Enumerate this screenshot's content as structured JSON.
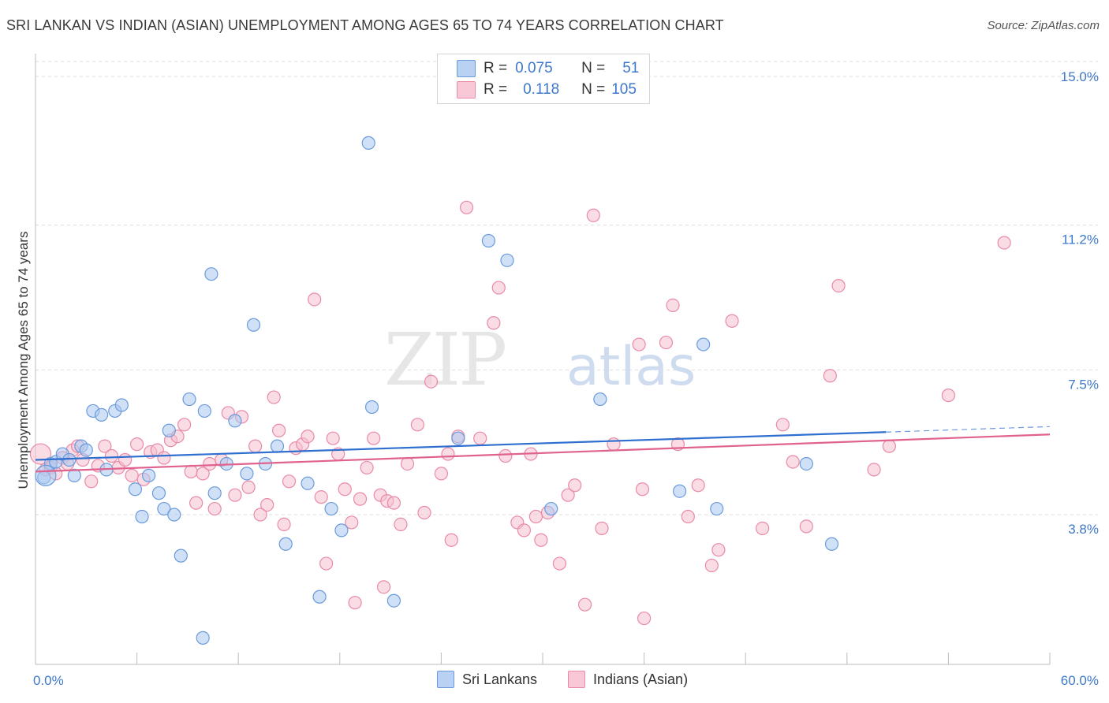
{
  "header": {
    "title": "SRI LANKAN VS INDIAN (ASIAN) UNEMPLOYMENT AMONG AGES 65 TO 74 YEARS CORRELATION CHART",
    "source": "Source: ZipAtlas.com"
  },
  "watermark": {
    "zip": "ZIP",
    "atlas": "atlas"
  },
  "legend_top": {
    "rows": [
      {
        "r_label": "R =",
        "r_value": "0.075",
        "n_label": "N =",
        "n_value": "51"
      },
      {
        "r_label": "R =",
        "r_value": "0.118",
        "n_label": "N =",
        "n_value": "105"
      }
    ]
  },
  "legend_bottom": {
    "items": [
      "Sri Lankans",
      "Indians (Asian)"
    ]
  },
  "colors": {
    "blue_fill": "#aac8f0",
    "blue_stroke": "#6a9bdc",
    "blue_line": "#2f6fd0",
    "pink_fill": "#f6bfd0",
    "pink_stroke": "#e98aa8",
    "pink_line": "#e0628e",
    "tick_label": "#3d78c9",
    "grid": "#dcdcdc"
  },
  "chart_data": {
    "type": "scatter",
    "title": "SRI LANKAN VS INDIAN (ASIAN) UNEMPLOYMENT AMONG AGES 65 TO 74 YEARS CORRELATION CHART",
    "xlabel": "",
    "ylabel": "Unemployment Among Ages 65 to 74 years",
    "xlim": [
      0,
      60
    ],
    "ylim": [
      0,
      15.5
    ],
    "x_tick_labels": [
      {
        "value": 0,
        "label": "0.0%"
      },
      {
        "value": 60,
        "label": "60.0%"
      }
    ],
    "y_ticks": [
      {
        "value": 3.8,
        "label": "3.8%"
      },
      {
        "value": 7.5,
        "label": "7.5%"
      },
      {
        "value": 11.2,
        "label": "11.2%"
      },
      {
        "value": 15.0,
        "label": "15.0%"
      }
    ],
    "grid": "horizontal dashed",
    "legend": "top-center",
    "series": [
      {
        "name": "Sri Lankans",
        "r": 0.075,
        "n": 51,
        "trend": {
          "x0": 0,
          "y0": 5.2,
          "x1": 50.3,
          "y1": 5.91,
          "dashed_to_x": 60,
          "dashed_to_y": 6.05
        },
        "points": [
          [
            0.5,
            4.75
          ],
          [
            0.9,
            5.1
          ],
          [
            1.2,
            5.15
          ],
          [
            1.6,
            5.35
          ],
          [
            2.0,
            5.2
          ],
          [
            2.3,
            4.8
          ],
          [
            2.7,
            5.55
          ],
          [
            3.0,
            5.45
          ],
          [
            3.4,
            6.45
          ],
          [
            3.9,
            6.35
          ],
          [
            4.2,
            4.95
          ],
          [
            4.7,
            6.45
          ],
          [
            5.1,
            6.6
          ],
          [
            5.9,
            4.45
          ],
          [
            6.3,
            3.75
          ],
          [
            6.7,
            4.8
          ],
          [
            7.3,
            4.35
          ],
          [
            7.6,
            3.95
          ],
          [
            7.9,
            5.95
          ],
          [
            8.2,
            3.8
          ],
          [
            8.6,
            2.75
          ],
          [
            9.1,
            6.75
          ],
          [
            9.9,
            0.65
          ],
          [
            10.0,
            6.45
          ],
          [
            10.4,
            9.95
          ],
          [
            10.6,
            4.35
          ],
          [
            11.3,
            5.1
          ],
          [
            11.8,
            6.2
          ],
          [
            12.5,
            4.85
          ],
          [
            12.9,
            8.65
          ],
          [
            13.6,
            5.1
          ],
          [
            14.3,
            5.55
          ],
          [
            14.8,
            3.05
          ],
          [
            16.1,
            4.6
          ],
          [
            16.8,
            1.7
          ],
          [
            17.5,
            3.95
          ],
          [
            18.1,
            3.4
          ],
          [
            19.7,
            13.3
          ],
          [
            19.9,
            6.55
          ],
          [
            21.2,
            1.6
          ],
          [
            25.0,
            5.75
          ],
          [
            26.8,
            10.8
          ],
          [
            27.9,
            10.3
          ],
          [
            30.5,
            3.95
          ],
          [
            33.4,
            6.75
          ],
          [
            38.1,
            4.4
          ],
          [
            39.5,
            8.15
          ],
          [
            40.3,
            3.95
          ],
          [
            45.6,
            5.1
          ],
          [
            47.1,
            3.05
          ],
          [
            0.6,
            4.8
          ]
        ]
      },
      {
        "name": "Indians (Asian)",
        "r": 0.118,
        "n": 105,
        "trend": {
          "x0": 0,
          "y0": 4.9,
          "x1": 60,
          "y1": 5.85
        },
        "points": [
          [
            0.3,
            5.35
          ],
          [
            0.6,
            4.95
          ],
          [
            0.9,
            5.0
          ],
          [
            1.2,
            4.85
          ],
          [
            1.6,
            5.25
          ],
          [
            1.9,
            5.1
          ],
          [
            2.2,
            5.45
          ],
          [
            2.5,
            5.55
          ],
          [
            2.8,
            5.2
          ],
          [
            3.3,
            4.65
          ],
          [
            3.7,
            5.05
          ],
          [
            4.1,
            5.55
          ],
          [
            4.5,
            5.3
          ],
          [
            4.9,
            5.0
          ],
          [
            5.3,
            5.2
          ],
          [
            5.7,
            4.8
          ],
          [
            6.0,
            5.6
          ],
          [
            6.4,
            4.7
          ],
          [
            6.8,
            5.4
          ],
          [
            7.2,
            5.45
          ],
          [
            7.6,
            5.25
          ],
          [
            8.0,
            5.7
          ],
          [
            8.4,
            5.8
          ],
          [
            8.8,
            6.1
          ],
          [
            9.2,
            4.9
          ],
          [
            9.5,
            4.1
          ],
          [
            9.9,
            4.85
          ],
          [
            10.3,
            5.1
          ],
          [
            10.6,
            3.95
          ],
          [
            11.0,
            5.2
          ],
          [
            11.4,
            6.4
          ],
          [
            11.8,
            4.3
          ],
          [
            12.2,
            6.3
          ],
          [
            12.6,
            4.5
          ],
          [
            13.0,
            5.55
          ],
          [
            13.3,
            3.8
          ],
          [
            13.7,
            4.05
          ],
          [
            14.1,
            6.8
          ],
          [
            14.4,
            5.95
          ],
          [
            14.7,
            3.55
          ],
          [
            15.0,
            4.65
          ],
          [
            15.4,
            5.5
          ],
          [
            15.8,
            5.6
          ],
          [
            16.1,
            5.8
          ],
          [
            16.5,
            9.3
          ],
          [
            16.9,
            4.25
          ],
          [
            17.2,
            2.55
          ],
          [
            17.6,
            5.75
          ],
          [
            17.9,
            5.35
          ],
          [
            18.3,
            4.45
          ],
          [
            18.7,
            3.6
          ],
          [
            18.9,
            1.55
          ],
          [
            19.2,
            4.2
          ],
          [
            19.6,
            5.0
          ],
          [
            20.0,
            5.75
          ],
          [
            20.4,
            4.3
          ],
          [
            20.6,
            1.95
          ],
          [
            20.8,
            4.15
          ],
          [
            21.2,
            4.1
          ],
          [
            21.6,
            3.55
          ],
          [
            22.0,
            5.1
          ],
          [
            22.6,
            6.1
          ],
          [
            23.0,
            3.85
          ],
          [
            23.4,
            7.2
          ],
          [
            24.0,
            4.85
          ],
          [
            24.4,
            5.35
          ],
          [
            24.6,
            3.15
          ],
          [
            25.0,
            5.8
          ],
          [
            25.5,
            11.65
          ],
          [
            26.3,
            5.75
          ],
          [
            27.1,
            8.7
          ],
          [
            27.4,
            9.6
          ],
          [
            27.8,
            5.3
          ],
          [
            28.5,
            3.6
          ],
          [
            28.9,
            3.4
          ],
          [
            29.3,
            5.35
          ],
          [
            29.6,
            3.75
          ],
          [
            29.9,
            3.15
          ],
          [
            30.3,
            3.85
          ],
          [
            31.0,
            2.55
          ],
          [
            31.5,
            4.3
          ],
          [
            31.9,
            4.55
          ],
          [
            32.5,
            1.5
          ],
          [
            33.0,
            11.45
          ],
          [
            33.5,
            3.45
          ],
          [
            34.2,
            5.6
          ],
          [
            35.7,
            8.15
          ],
          [
            35.9,
            4.45
          ],
          [
            36.0,
            1.15
          ],
          [
            37.3,
            8.2
          ],
          [
            37.7,
            9.15
          ],
          [
            38.0,
            5.6
          ],
          [
            38.6,
            3.75
          ],
          [
            39.2,
            4.55
          ],
          [
            40.0,
            2.5
          ],
          [
            40.4,
            2.9
          ],
          [
            41.2,
            8.75
          ],
          [
            43.0,
            3.45
          ],
          [
            44.2,
            6.1
          ],
          [
            44.8,
            5.15
          ],
          [
            45.6,
            3.5
          ],
          [
            47.0,
            7.35
          ],
          [
            47.5,
            9.65
          ],
          [
            49.6,
            4.95
          ],
          [
            50.5,
            5.55
          ],
          [
            54.0,
            6.85
          ],
          [
            57.3,
            10.75
          ]
        ]
      }
    ]
  }
}
